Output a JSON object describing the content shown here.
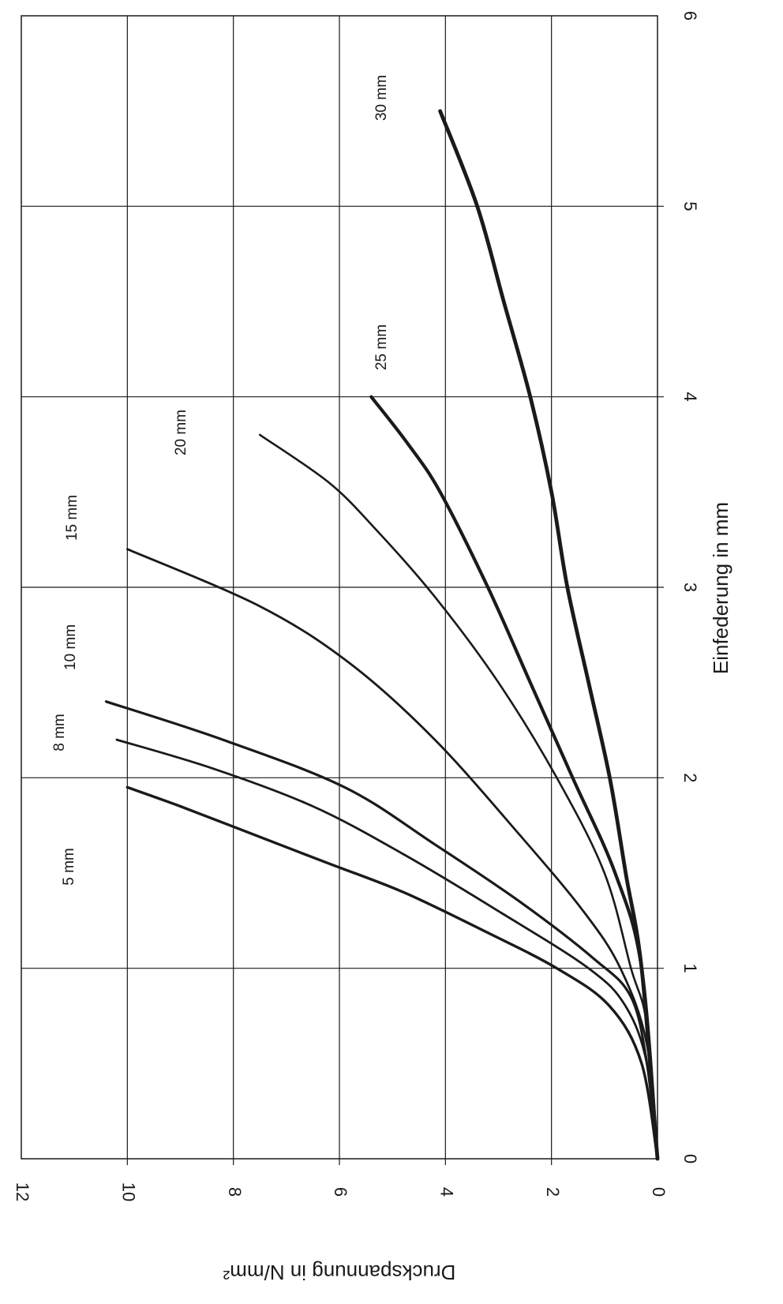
{
  "chart_data": {
    "type": "line",
    "orientation": "rotated 90 degrees clockwise (x axis at right edge, y axis at bottom edge)",
    "xlabel": "Einfederung in  mm",
    "ylabel": "Druckspannung in  N/mm²",
    "xlim": [
      0,
      6
    ],
    "ylim": [
      0,
      12
    ],
    "x_ticks": [
      "0",
      "1",
      "2",
      "3",
      "4",
      "5",
      "6"
    ],
    "y_ticks": [
      "0",
      "2",
      "4",
      "6",
      "8",
      "10",
      "12"
    ],
    "grid": true,
    "legend": "none (series labelled directly)",
    "line_color": "#1a1a1a",
    "series": [
      {
        "name": "5 mm",
        "x": [
          0,
          0.5,
          0.8,
          1.0,
          1.2,
          1.4,
          1.55,
          1.7,
          1.85,
          1.95
        ],
        "y": [
          0,
          0.3,
          0.9,
          1.9,
          3.3,
          4.8,
          6.2,
          7.6,
          9.0,
          10.0
        ]
      },
      {
        "name": "8 mm",
        "x": [
          0,
          0.5,
          0.8,
          1.0,
          1.3,
          1.6,
          1.85,
          2.05,
          2.2
        ],
        "y": [
          0,
          0.2,
          0.6,
          1.3,
          3.0,
          4.8,
          6.5,
          8.4,
          10.2
        ]
      },
      {
        "name": "10 mm",
        "x": [
          0,
          0.5,
          0.85,
          1.05,
          1.35,
          1.65,
          1.95,
          2.2,
          2.4
        ],
        "y": [
          0,
          0.2,
          0.5,
          1.2,
          2.6,
          4.2,
          5.9,
          8.2,
          10.4
        ]
      },
      {
        "name": "15 mm",
        "x": [
          0,
          0.6,
          1.0,
          1.3,
          1.7,
          2.2,
          2.6,
          2.9,
          3.2
        ],
        "y": [
          0,
          0.2,
          0.7,
          1.4,
          2.6,
          4.2,
          5.8,
          7.5,
          10.0
        ]
      },
      {
        "name": "20 mm",
        "x": [
          0,
          0.7,
          1.0,
          1.5,
          2.0,
          2.5,
          2.95,
          3.3,
          3.55,
          3.8
        ],
        "y": [
          0,
          0.2,
          0.5,
          1.0,
          1.9,
          3.0,
          4.2,
          5.3,
          6.2,
          7.5
        ]
      },
      {
        "name": "25 mm",
        "x": [
          0,
          1.0,
          1.5,
          2.0,
          2.5,
          3.0,
          3.5,
          3.75,
          4.0
        ],
        "y": [
          0,
          0.3,
          0.8,
          1.6,
          2.4,
          3.2,
          4.1,
          4.7,
          5.4
        ]
      },
      {
        "name": "30 mm",
        "x": [
          0,
          1.0,
          1.5,
          2.0,
          2.5,
          3.0,
          3.5,
          4.0,
          4.5,
          5.0,
          5.5
        ],
        "y": [
          0,
          0.3,
          0.6,
          0.9,
          1.3,
          1.7,
          2.0,
          2.4,
          2.9,
          3.4,
          4.1
        ]
      }
    ]
  }
}
